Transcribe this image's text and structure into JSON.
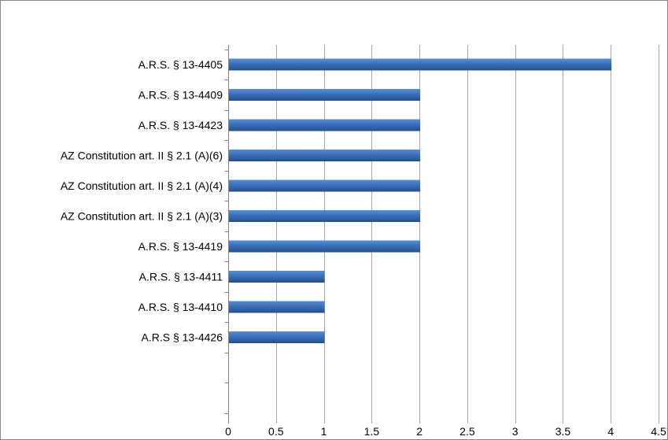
{
  "chart_data": {
    "type": "bar",
    "orientation": "horizontal",
    "title": "",
    "xlabel": "",
    "ylabel": "",
    "categories": [
      "A.R.S. § 13-4405",
      "A.R.S. § 13-4409",
      "A.R.S. § 13-4423",
      "AZ Constitution art. II  §  2.1 (A)(6)",
      "AZ Constitution art. II  § 2.1 (A)(4)",
      "AZ Constitution art. II  §  2.1 (A)(3)",
      "A.R.S. § 13-4419",
      "A.R.S. § 13-4411",
      "A.R.S. § 13-4410",
      "A.R.S § 13-4426"
    ],
    "values": [
      4,
      2,
      2,
      2,
      2,
      2,
      2,
      1,
      1,
      1
    ],
    "xlim": [
      0,
      4.5
    ],
    "x_ticks": [
      "0",
      "0.5",
      "1",
      "1.5",
      "2",
      "2.5",
      "3",
      "3.5",
      "4",
      "4.5"
    ],
    "grid": "vertical",
    "legend": "none",
    "colors": {
      "bar_light": "#5b8fd0",
      "bar_mid": "#3a6fba",
      "bar_dark": "#23508f",
      "grid": "#a6a6a6",
      "axis": "#868686"
    }
  }
}
